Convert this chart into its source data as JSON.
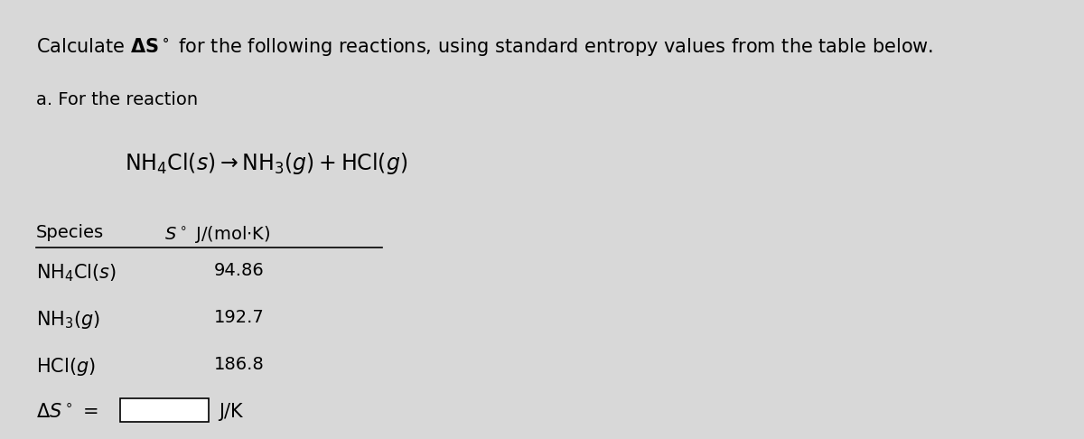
{
  "background_color": "#d8d8d8",
  "title_line": "Calculate ΔS° for the following reactions, using standard entropy values from the table below.",
  "subtitle": "a. For the reaction",
  "reaction": "NH₄Cl(s) → NH₃(g) + HCl(g)",
  "table_header_species": "Species",
  "table_header_entropy": "S° J/(mol·K)",
  "species": [
    "NH₄Cl(s)",
    "NH₃(g)",
    "HCl(g)"
  ],
  "entropy_values": [
    "94.86",
    "192.7",
    "186.8"
  ],
  "answer_label": "ΔS° =",
  "answer_unit": "J/K",
  "font_size_title": 15,
  "font_size_body": 14,
  "font_size_reaction": 17,
  "font_size_table": 14
}
